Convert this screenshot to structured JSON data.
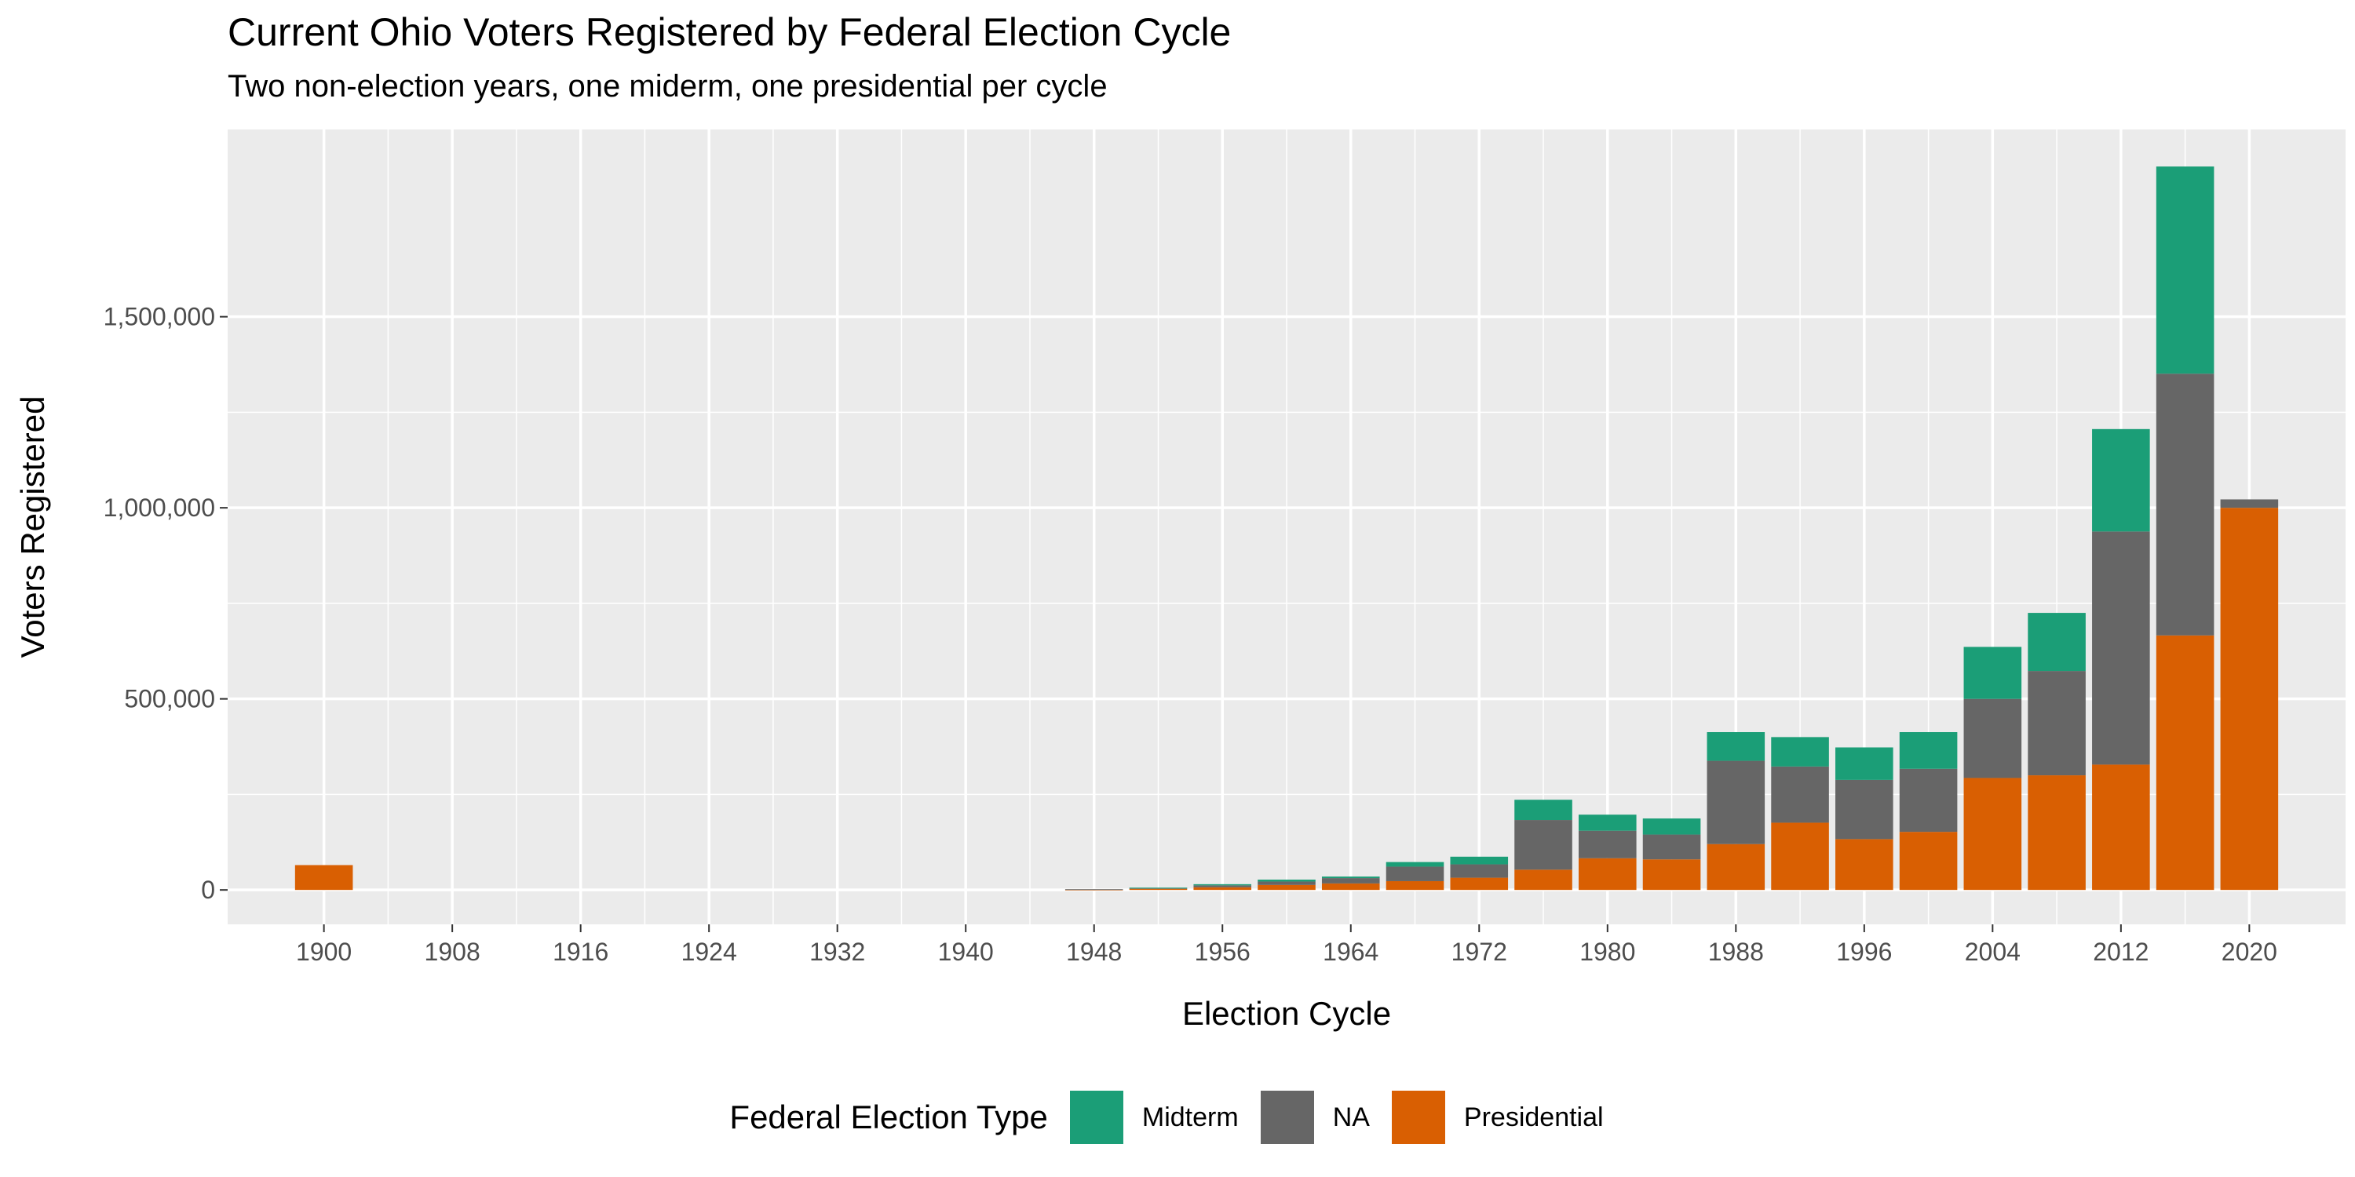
{
  "chart_data": {
    "type": "bar",
    "stacked": true,
    "title": "Current Ohio Voters Registered by Federal Election Cycle",
    "subtitle": "Two non-election years, one miderm, one presidential per cycle",
    "xlabel": "Election Cycle",
    "ylabel": "Voters Registered",
    "xlim": [
      1894,
      2026
    ],
    "ylim": [
      -90000,
      1990000
    ],
    "x_ticks": [
      1900,
      1908,
      1916,
      1924,
      1932,
      1940,
      1948,
      1956,
      1964,
      1972,
      1980,
      1988,
      1996,
      2004,
      2012,
      2020
    ],
    "x_tick_labels": [
      "1900",
      "1908",
      "1916",
      "1924",
      "1932",
      "1940",
      "1948",
      "1956",
      "1964",
      "1972",
      "1980",
      "1988",
      "1996",
      "2004",
      "2012",
      "2020"
    ],
    "y_ticks": [
      0,
      500000,
      1000000,
      1500000
    ],
    "y_tick_labels": [
      "0",
      "500,000",
      "1,000,000",
      "1,500,000"
    ],
    "grid": true,
    "legend_position": "bottom",
    "legend_title": "Federal Election Type",
    "series_order": [
      "Presidential",
      "NA",
      "Midterm"
    ],
    "colors": {
      "Midterm": "#1b9e77",
      "NA": "#666666",
      "Presidential": "#d95f02",
      "panel": "#ebebeb",
      "grid": "#ffffff"
    },
    "x": [
      1900,
      1948,
      1952,
      1956,
      1960,
      1964,
      1968,
      1972,
      1976,
      1980,
      1984,
      1988,
      1992,
      1996,
      2000,
      2004,
      2008,
      2012,
      2016,
      2020
    ],
    "series": [
      {
        "name": "Presidential",
        "values": [
          65000,
          1000,
          3000,
          7000,
          13000,
          17000,
          23000,
          32000,
          53000,
          83000,
          80000,
          120000,
          176000,
          133000,
          152000,
          293000,
          300000,
          328000,
          666000,
          1000000
        ]
      },
      {
        "name": "NA",
        "values": [
          0,
          1000,
          2000,
          5000,
          9000,
          14000,
          38000,
          35000,
          130000,
          72000,
          65000,
          218000,
          147000,
          155000,
          165000,
          207000,
          273000,
          610000,
          685000,
          22000
        ]
      },
      {
        "name": "Midterm",
        "values": [
          0,
          0,
          1000,
          3000,
          5000,
          4000,
          12000,
          20000,
          53000,
          42000,
          42000,
          75000,
          77000,
          85000,
          96000,
          136000,
          152000,
          268000,
          542000,
          0
        ]
      }
    ]
  }
}
